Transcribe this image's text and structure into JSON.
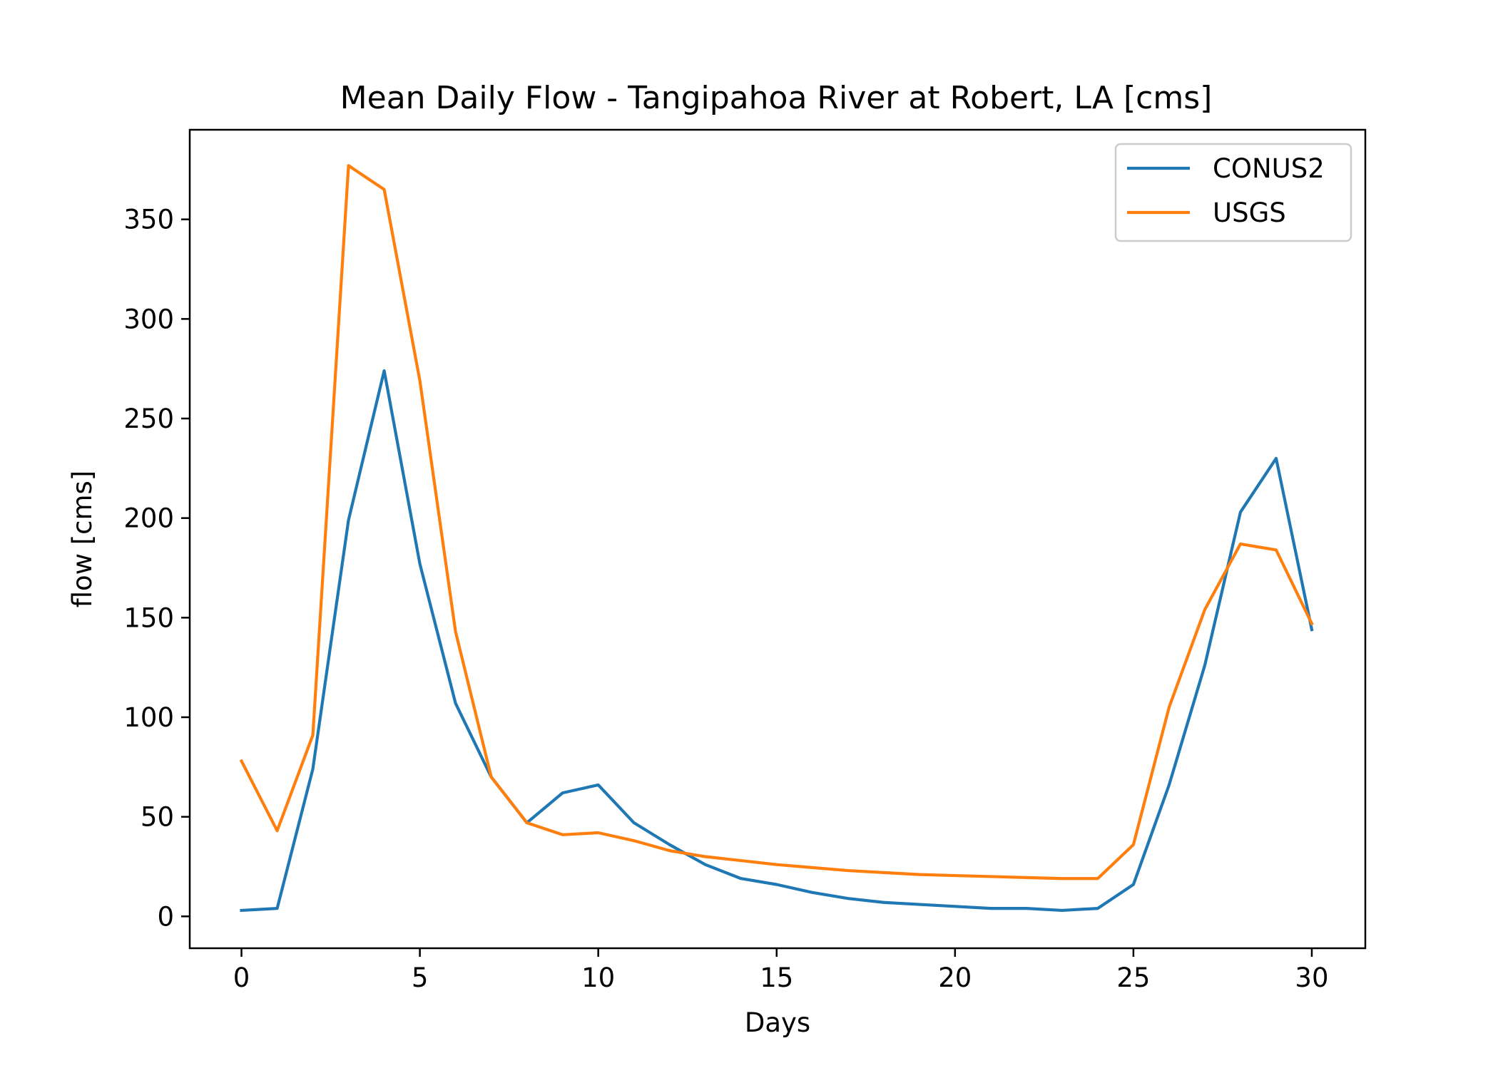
{
  "chart_data": {
    "type": "line",
    "title": "Mean Daily Flow - Tangipahoa River at Robert, LA [cms]",
    "xlabel": "Days",
    "ylabel": "flow [cms]",
    "xlim": [
      -1.45,
      31.5
    ],
    "ylim": [
      -16,
      395
    ],
    "xticks": [
      0,
      5,
      10,
      15,
      20,
      25,
      30
    ],
    "yticks": [
      0,
      50,
      100,
      150,
      200,
      250,
      300,
      350
    ],
    "grid": false,
    "legend_position": "top-right",
    "x": [
      0,
      1,
      2,
      3,
      4,
      5,
      6,
      7,
      8,
      9,
      10,
      11,
      12,
      13,
      14,
      15,
      16,
      17,
      18,
      19,
      20,
      21,
      22,
      23,
      24,
      25,
      26,
      27,
      28,
      29,
      30
    ],
    "series": [
      {
        "name": "CONUS2",
        "color": "#1f77b4",
        "values": [
          3,
          4,
          74,
          199,
          274,
          177,
          107,
          70,
          47,
          62,
          66,
          47,
          36,
          26,
          19,
          16,
          12,
          9,
          7,
          6,
          5,
          4,
          4,
          3,
          4,
          16,
          66,
          126,
          203,
          230,
          144
        ]
      },
      {
        "name": "USGS",
        "color": "#ff7f0e",
        "values": [
          78,
          43,
          91,
          377,
          365,
          269,
          143,
          70,
          47,
          41,
          42,
          38,
          33,
          30,
          28,
          26,
          24.5,
          23,
          22,
          21,
          20.5,
          20,
          19.5,
          19,
          19,
          36,
          105,
          154,
          187,
          184,
          147
        ]
      }
    ]
  }
}
